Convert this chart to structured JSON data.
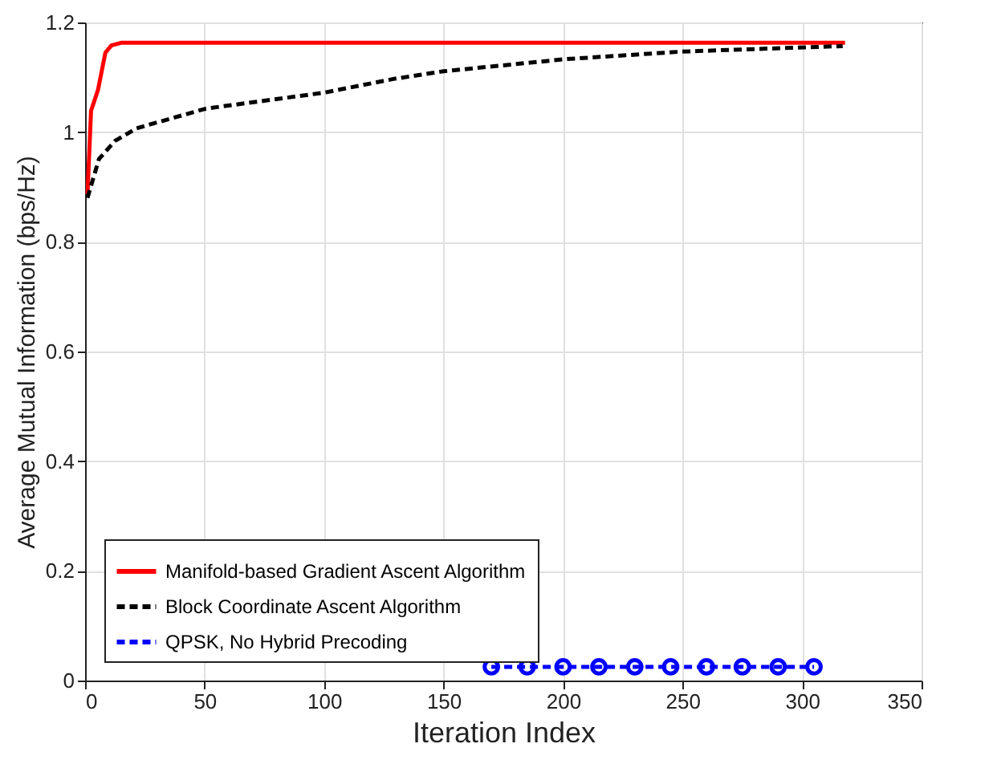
{
  "chart_data": {
    "type": "line",
    "xlabel": "Iteration Index",
    "ylabel": "Average Mutual Information (bps/Hz)",
    "xlim": [
      0,
      350
    ],
    "xticks": [
      0,
      50,
      100,
      150,
      200,
      250,
      300,
      350
    ],
    "ylim": [
      0,
      1.2
    ],
    "yticks": [
      0,
      0.2,
      0.4,
      0.6,
      0.8,
      1,
      1.2
    ],
    "grid": true,
    "legend": "bottom left",
    "series": [
      {
        "name": "Manifold-based Gradient Ascent Algorithm",
        "color": "#ff0000",
        "line_style": "solid",
        "marker": "none",
        "x": [
          1,
          2.5,
          5.4,
          8.5,
          11,
          15,
          100,
          200,
          318
        ],
        "values": [
          0.887,
          1.039,
          1.077,
          1.145,
          1.158,
          1.163,
          1.163,
          1.163,
          1.163
        ]
      },
      {
        "name": "Block Coordinate Ascent Algorithm",
        "color": "#000000",
        "line_style": "dashed",
        "marker": "none",
        "x": [
          1,
          5.8,
          12.5,
          21.5,
          50.6,
          100,
          129,
          150,
          200.6,
          250,
          317
        ],
        "values": [
          0.88,
          0.951,
          0.984,
          1.007,
          1.043,
          1.072,
          1.097,
          1.111,
          1.133,
          1.147,
          1.157
        ]
      },
      {
        "name": "QPSK, No Hybrid Precoding",
        "color": "#0000ff",
        "line_style": "dashed",
        "marker": "circle",
        "x": [
          170,
          185,
          200,
          215,
          230,
          245,
          260,
          275,
          290,
          305
        ],
        "values": [
          0.025,
          0.025,
          0.025,
          0.025,
          0.025,
          0.025,
          0.025,
          0.025,
          0.025,
          0.025
        ]
      }
    ]
  }
}
